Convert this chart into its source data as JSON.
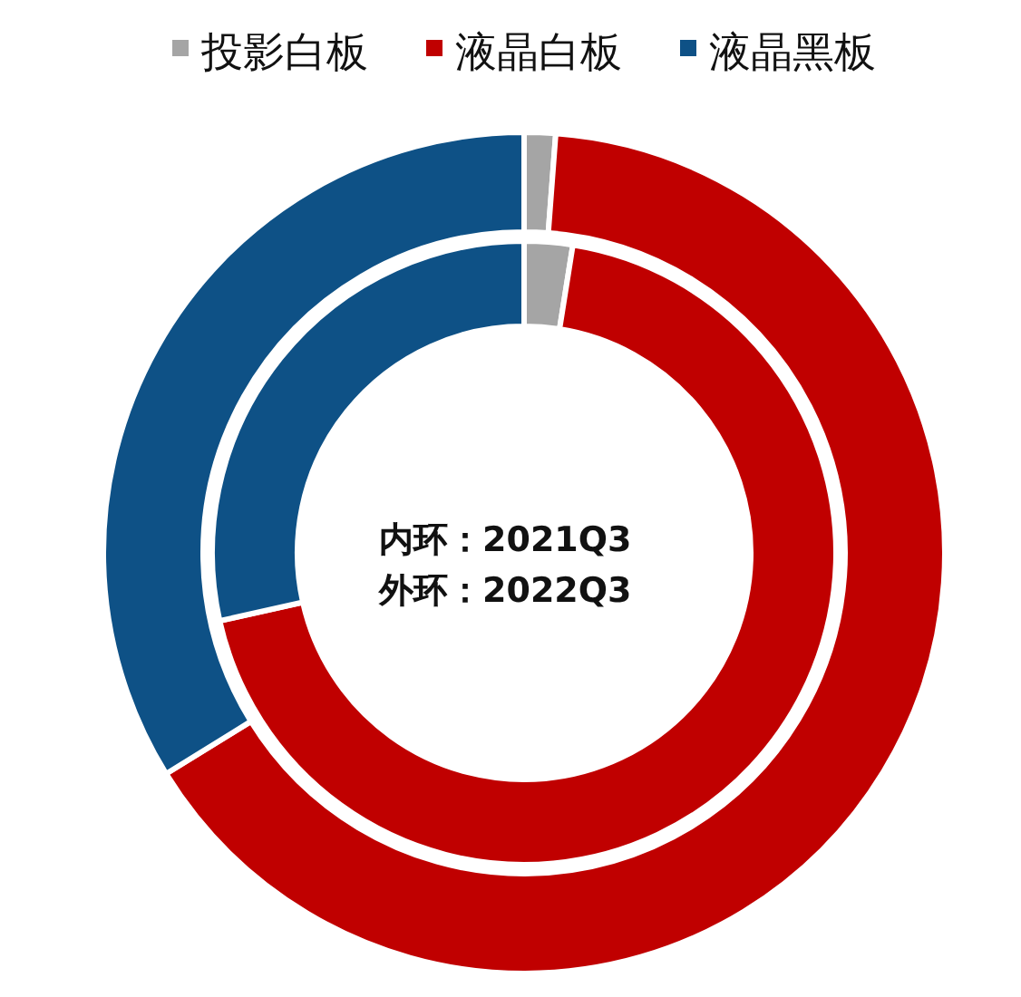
{
  "chart_data": {
    "type": "donut",
    "categories": [
      "投影白板",
      "液晶白板",
      "液晶黑板"
    ],
    "colors": [
      "#a5a5a5",
      "#c00000",
      "#0e5186"
    ],
    "series": [
      {
        "values": [
          2.5,
          69,
          28.5
        ]
      },
      {
        "values": [
          1.2,
          65,
          33.8
        ]
      }
    ],
    "legend": "top",
    "annotations": [
      "内环：2021Q3",
      "外环：2022Q3"
    ]
  }
}
